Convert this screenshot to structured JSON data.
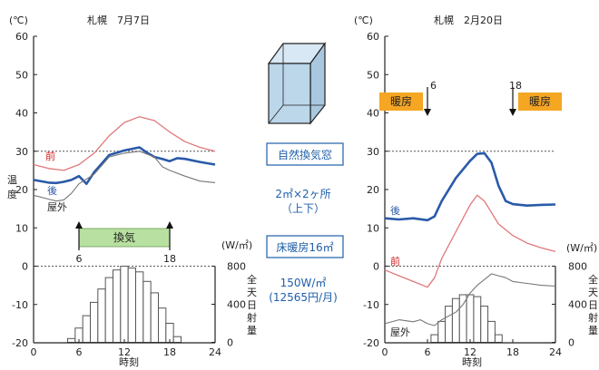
{
  "colors": {
    "before_line": "#e0787a",
    "after_line": "#2a5aa8",
    "outdoor_line": "#777777",
    "vent_bar": "#b8e0a0",
    "heating_bar": "#f5a623",
    "cube_fill": "#bcd6ea",
    "accent_text": "#1f5fa8",
    "ref_line": "#555555"
  },
  "labels": {
    "unit_c": "(℃)",
    "unit_w": "(W/㎡)",
    "xlabel": "時刻",
    "ylabel": "温度",
    "rad_label": "全天日射量",
    "before": "前",
    "after": "後",
    "outdoor": "屋外"
  },
  "annotations": {
    "ventilation_label": "換気",
    "vent_start": "6",
    "vent_end": "18",
    "heating_label": "暖房",
    "heat_start": "6",
    "heat_end": "18"
  },
  "middle": {
    "icon": "window-cube-icon",
    "box1": "自然換気窓",
    "spec1_line1": "2㎡×2ヶ所",
    "spec1_line2": "（上下）",
    "box2": "床暖房16㎡",
    "spec2_line1": "150W/㎡",
    "spec2_line2": "(12565円/月)"
  },
  "chart_data": [
    {
      "type": "line",
      "title": "札幌　7月7日",
      "xlim": [
        0,
        24
      ],
      "xticks": [
        0,
        6,
        12,
        18,
        24
      ],
      "ylim": [
        -20,
        60
      ],
      "yticks": [
        -20,
        -10,
        0,
        10,
        20,
        30,
        40,
        50,
        60
      ],
      "reference_lines": [
        0,
        30
      ],
      "radiation_axis": {
        "range": [
          0,
          800
        ],
        "ticks": [
          0,
          400,
          800
        ]
      },
      "series": [
        {
          "name": "前",
          "x": [
            0,
            2,
            4,
            6,
            8,
            10,
            12,
            14,
            16,
            18,
            20,
            22,
            24
          ],
          "y": [
            26.5,
            25.5,
            25,
            26.5,
            29.5,
            34,
            37.5,
            39,
            38,
            35,
            32.5,
            31,
            30
          ]
        },
        {
          "name": "後",
          "x": [
            0,
            2,
            3,
            4,
            5,
            6,
            7,
            8,
            10,
            12,
            14,
            15,
            16,
            17,
            18,
            19,
            20,
            22,
            24
          ],
          "y": [
            22.5,
            21.8,
            21.7,
            22,
            22.5,
            23.5,
            21.5,
            24.5,
            29,
            30.2,
            31,
            29.6,
            28.5,
            28,
            27.4,
            28.2,
            28,
            27.2,
            26.5
          ]
        },
        {
          "name": "屋外",
          "x": [
            0,
            2,
            3,
            4,
            5,
            6,
            8,
            10,
            12,
            14,
            16,
            17,
            18,
            20,
            22,
            24
          ],
          "y": [
            18.5,
            17.5,
            17,
            17.3,
            19,
            21.5,
            24,
            28.5,
            29.5,
            30,
            28.5,
            26,
            25,
            23.5,
            22.2,
            21.8
          ]
        }
      ],
      "radiation": {
        "hours": [
          5,
          6,
          7,
          8,
          9,
          10,
          11,
          12,
          13,
          14,
          15,
          16,
          17,
          18,
          19
        ],
        "values": [
          40,
          150,
          280,
          420,
          560,
          680,
          760,
          800,
          780,
          740,
          640,
          520,
          360,
          200,
          60
        ]
      },
      "period": {
        "label": "換気",
        "start": 6,
        "end": 18
      }
    },
    {
      "type": "line",
      "title": "札幌　2月20日",
      "xlim": [
        0,
        24
      ],
      "xticks": [
        0,
        6,
        12,
        18,
        24
      ],
      "ylim": [
        -20,
        60
      ],
      "yticks": [
        -20,
        -10,
        0,
        10,
        20,
        30,
        40,
        50,
        60
      ],
      "reference_lines": [
        0,
        30
      ],
      "radiation_axis": {
        "range": [
          0,
          800
        ],
        "ticks": [
          0,
          400,
          800
        ]
      },
      "series": [
        {
          "name": "前",
          "x": [
            0,
            2,
            4,
            6,
            7,
            8,
            10,
            12,
            13,
            14,
            16,
            18,
            20,
            22,
            24
          ],
          "y": [
            -1,
            -2.5,
            -4,
            -5.5,
            -3,
            2,
            9,
            16,
            18.5,
            17,
            11,
            8,
            6,
            4.8,
            3.8
          ]
        },
        {
          "name": "後",
          "x": [
            0,
            2,
            4,
            6,
            7,
            8,
            10,
            12,
            13,
            14,
            15,
            16,
            17,
            18,
            20,
            22,
            24
          ],
          "y": [
            12.5,
            12.2,
            12.5,
            12,
            13,
            17,
            23,
            27.5,
            29.3,
            29.5,
            27,
            21,
            17,
            16.2,
            15.8,
            16,
            16.1
          ]
        },
        {
          "name": "屋外",
          "x": [
            0,
            2,
            4,
            5,
            6,
            7,
            8,
            9,
            10,
            11,
            12,
            13,
            14,
            15,
            16,
            17,
            18,
            20,
            22,
            24
          ],
          "y": [
            -15,
            -14,
            -14.5,
            -14,
            -15,
            -15.5,
            -14,
            -13,
            -12,
            -10,
            -7,
            -5,
            -3.5,
            -2,
            -2.5,
            -3,
            -4,
            -4.5,
            -5,
            -5.2
          ]
        }
      ],
      "radiation": {
        "hours": [
          7,
          8,
          9,
          10,
          11,
          12,
          13,
          14,
          15,
          16
        ],
        "values": [
          80,
          220,
          380,
          460,
          500,
          500,
          480,
          380,
          220,
          80
        ]
      },
      "period": {
        "label": "暖房",
        "start": 6,
        "end": 18
      }
    }
  ]
}
